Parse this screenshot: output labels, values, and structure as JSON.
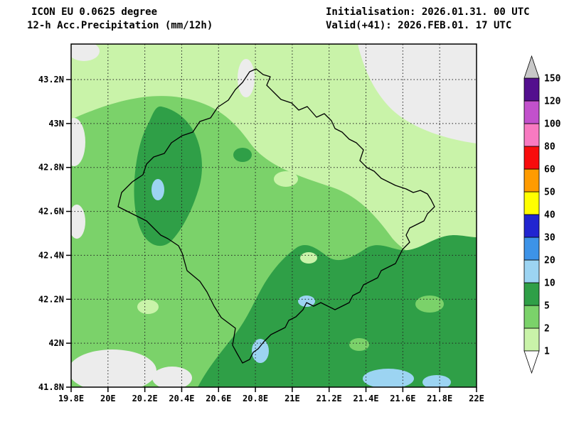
{
  "header": {
    "model_line": "ICON EU 0.0625 degree",
    "product_line": "12-h Acc.Precipitation (mm/12h)",
    "init_line": "Initialisation: 2026.01.31. 00 UTC",
    "valid_line": "Valid(+41): 2026.FEB.01. 17 UTC"
  },
  "map": {
    "lat_ticks": [
      "43.2N",
      "43N",
      "42.8N",
      "42.6N",
      "42.4N",
      "42.2N",
      "42N",
      "41.8N"
    ],
    "lon_ticks": [
      "19.8E",
      "20E",
      "20.2E",
      "20.4E",
      "20.6E",
      "20.8E",
      "21E",
      "21.2E",
      "21.4E",
      "21.6E",
      "21.8E",
      "22E"
    ]
  },
  "colorbar": {
    "labels_bottom_to_top": [
      "1",
      "2",
      "5",
      "10",
      "20",
      "30",
      "40",
      "50",
      "60",
      "80",
      "100",
      "120",
      "150"
    ],
    "segment_colors_bottom_to_top": [
      "#c9f3a9",
      "#7bd26a",
      "#2f9f47",
      "#9cd4f2",
      "#3d93e8",
      "#2125d0",
      "#ffff00",
      "#ff9b00",
      "#f80c0c",
      "#f87ac1",
      "#c251cc",
      "#530f8e"
    ],
    "below_min_color": "#ffffff",
    "above_max_color": "#c8c8c8"
  },
  "field_palette": {
    "lt1": "#ececec",
    "p1_2": "#c9f3a9",
    "p2_5": "#7bd26a",
    "p5_10": "#2f9f47",
    "p10_20": "#9cd4f2"
  }
}
